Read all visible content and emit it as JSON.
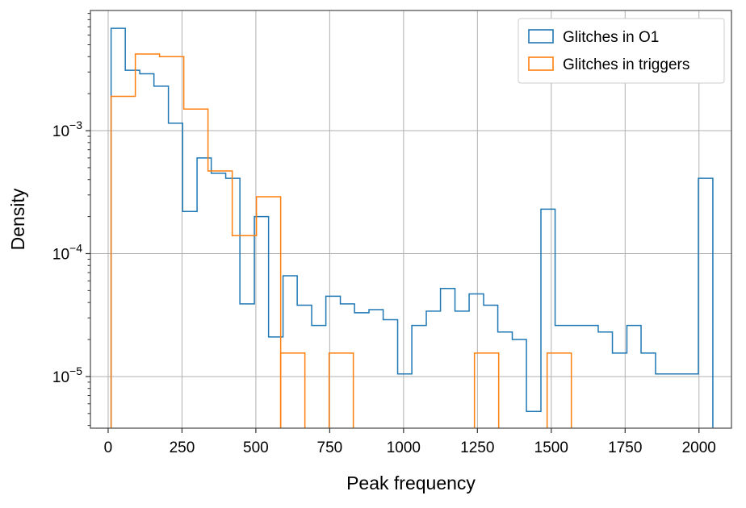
{
  "chart_data": {
    "type": "histogram",
    "xlabel": "Peak frequency",
    "ylabel": "Density",
    "xlim": [
      -60,
      2110
    ],
    "ylim": [
      3.8e-06,
      0.0095
    ],
    "yscale": "log",
    "grid": true,
    "legend_position": "top-right",
    "x_ticks": [
      0,
      250,
      500,
      750,
      1000,
      1250,
      1500,
      1750,
      2000
    ],
    "x_tick_labels": [
      "0",
      "250",
      "500",
      "750",
      "1000",
      "1250",
      "1500",
      "1750",
      "2000"
    ],
    "y_ticks": [
      1e-05,
      0.0001,
      0.001
    ],
    "y_tick_labels": [
      {
        "base": "10",
        "exp": "−5"
      },
      {
        "base": "10",
        "exp": "−4"
      },
      {
        "base": "10",
        "exp": "−3"
      }
    ],
    "series": [
      {
        "name": "Glitches in O1",
        "color": "#1f77b4",
        "bin_edges": [
          10,
          58,
          107,
          155,
          204,
          252,
          301,
          349,
          398,
          446,
          495,
          543,
          592,
          640,
          689,
          737,
          786,
          834,
          883,
          931,
          980,
          1028,
          1077,
          1125,
          1174,
          1222,
          1271,
          1319,
          1368,
          1416,
          1465,
          1513,
          1562,
          1610,
          1659,
          1707,
          1756,
          1804,
          1853,
          1901,
          1950,
          1998,
          2047
        ],
        "values": [
          0.0068,
          0.0031,
          0.0029,
          0.0023,
          0.00115,
          0.00022,
          0.0006,
          0.00045,
          0.00041,
          3.9e-05,
          0.0002,
          2.1e-05,
          6.6e-05,
          3.8e-05,
          2.6e-05,
          4.5e-05,
          3.9e-05,
          3.3e-05,
          3.5e-05,
          2.9e-05,
          1.05e-05,
          2.6e-05,
          3.4e-05,
          5.2e-05,
          3.4e-05,
          4.7e-05,
          3.8e-05,
          2.3e-05,
          2e-05,
          5.2e-06,
          0.00023,
          2.6e-05,
          2.6e-05,
          2.6e-05,
          2.3e-05,
          1.55e-05,
          2.6e-05,
          1.55e-05,
          1.05e-05,
          1.05e-05,
          1.05e-05,
          0.00041
        ]
      },
      {
        "name": "Glitches in triggers",
        "color": "#ff7f0e",
        "bin_edges": [
          10,
          92,
          174,
          256,
          338,
          420,
          502,
          584,
          666,
          748,
          830,
          912,
          994,
          1076,
          1158,
          1240,
          1322,
          1404,
          1486,
          1568
        ],
        "values": [
          0.0019,
          0.0042,
          0.004,
          0.0015,
          0.00047,
          0.00014,
          0.00029,
          1.55e-05,
          1.55e-05,
          1.55e-05,
          1.55e-05,
          1.55e-05,
          1.55e-05,
          1.55e-05,
          1.55e-05,
          1.55e-05,
          1.55e-05,
          1.55e-05,
          1.55e-05
        ],
        "segments": [
          {
            "from": 10,
            "to": 584,
            "values": [
              0.0019,
              0.0042,
              0.004,
              0.0015,
              0.00047,
              0.00014,
              0.00029
            ]
          },
          {
            "from": 584,
            "to": 666,
            "values": [
              1.55e-05
            ]
          },
          {
            "from": 748,
            "to": 830,
            "values": [
              1.55e-05
            ]
          },
          {
            "from": 1240,
            "to": 1322,
            "values": [
              1.55e-05
            ]
          },
          {
            "from": 1486,
            "to": 1568,
            "values": [
              1.55e-05
            ]
          }
        ]
      }
    ]
  }
}
